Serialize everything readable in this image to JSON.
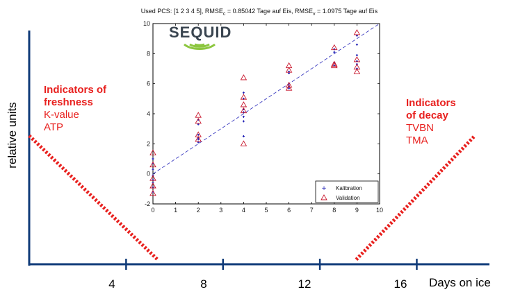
{
  "outer": {
    "y_label": "relative units",
    "x_label": "Days on ice",
    "x_ticks": [
      "4",
      "8",
      "12",
      "16"
    ],
    "annotation_left": {
      "head1": "Indicators of",
      "head2": "freshness",
      "items": [
        "K-value",
        "ATP"
      ]
    },
    "annotation_right": {
      "head1": "Indicators",
      "head2": "of decay",
      "items": [
        "TVBN",
        "TMA"
      ]
    },
    "colors": {
      "axis": "#0f3a78",
      "indicator": "#e8201e"
    }
  },
  "inset": {
    "title": "Used PCS: [1  2  3  4  5], RMSE",
    "title_sub_c": "c",
    "title_mid": " = 0.85042 Tage auf Eis, RMSE",
    "title_sub_v": "v",
    "title_end": " = 1.0975 Tage auf Eis",
    "logo_text": "SEQUID",
    "legend": {
      "calibration": "Kalibration",
      "validation": "Validation"
    },
    "colors": {
      "calibration": "#1f1fb4",
      "validation": "#c8142a",
      "fit_line": "#3a3ac0",
      "logo_arcs": "#8cc63f"
    }
  },
  "chart_data": [
    {
      "type": "line",
      "title": "",
      "xlabel": "Days on ice",
      "ylabel": "relative units",
      "x_ticks": [
        4,
        8,
        12,
        16
      ],
      "xlim": [
        0,
        19
      ],
      "series": [
        {
          "name": "Indicators of freshness",
          "x": [
            0,
            5.3
          ],
          "y": [
            0.55,
            0.02
          ]
        },
        {
          "name": "Indicators of decay",
          "x": [
            13.5,
            18.4
          ],
          "y": [
            0.02,
            0.55
          ]
        }
      ]
    },
    {
      "type": "scatter",
      "title": "Used PCS: [1  2  3  4  5], RMSE_c = 0.85042 Tage auf Eis, RMSE_v = 1.0975 Tage auf Eis",
      "xlim": [
        0,
        10
      ],
      "ylim": [
        -2,
        10
      ],
      "x_ticks": [
        0,
        1,
        2,
        3,
        4,
        5,
        6,
        7,
        8,
        9,
        10
      ],
      "y_ticks": [
        -2,
        0,
        2,
        4,
        6,
        8,
        10
      ],
      "legend_position": "bottom-right",
      "fit_line": {
        "x": [
          0,
          10
        ],
        "y": [
          0,
          10
        ]
      },
      "series": [
        {
          "name": "Kalibration",
          "x": [
            0,
            0,
            0,
            0,
            0,
            0,
            0,
            0,
            2,
            2,
            2,
            2,
            2,
            2,
            4,
            4,
            4,
            4,
            4,
            4,
            4,
            6,
            6,
            6,
            6,
            6,
            8,
            8,
            8,
            8,
            9,
            9,
            9,
            9,
            9,
            9
          ],
          "y": [
            1.0,
            0.7,
            0.3,
            -0.1,
            -0.4,
            -0.6,
            -0.9,
            -1.2,
            3.6,
            3.3,
            2.6,
            2.4,
            2.3,
            2.1,
            5.4,
            5.0,
            4.3,
            4.1,
            3.8,
            3.5,
            2.5,
            6.8,
            6.7,
            5.9,
            5.8,
            5.7,
            8.3,
            8.1,
            7.4,
            7.2,
            9.2,
            8.6,
            7.9,
            7.5,
            7.3,
            7.0
          ]
        },
        {
          "name": "Validation",
          "x": [
            0,
            0,
            0,
            0,
            0,
            2,
            2,
            2,
            2,
            4,
            4,
            4,
            4,
            4,
            6,
            6,
            6,
            6,
            8,
            8,
            8,
            9,
            9,
            9,
            9
          ],
          "y": [
            1.4,
            0.6,
            -0.3,
            -0.8,
            -1.3,
            3.9,
            3.5,
            2.6,
            2.3,
            6.4,
            5.1,
            4.6,
            4.2,
            2.0,
            7.2,
            6.9,
            5.9,
            5.7,
            8.4,
            7.3,
            7.2,
            9.4,
            7.6,
            7.1,
            6.8
          ]
        }
      ]
    }
  ]
}
